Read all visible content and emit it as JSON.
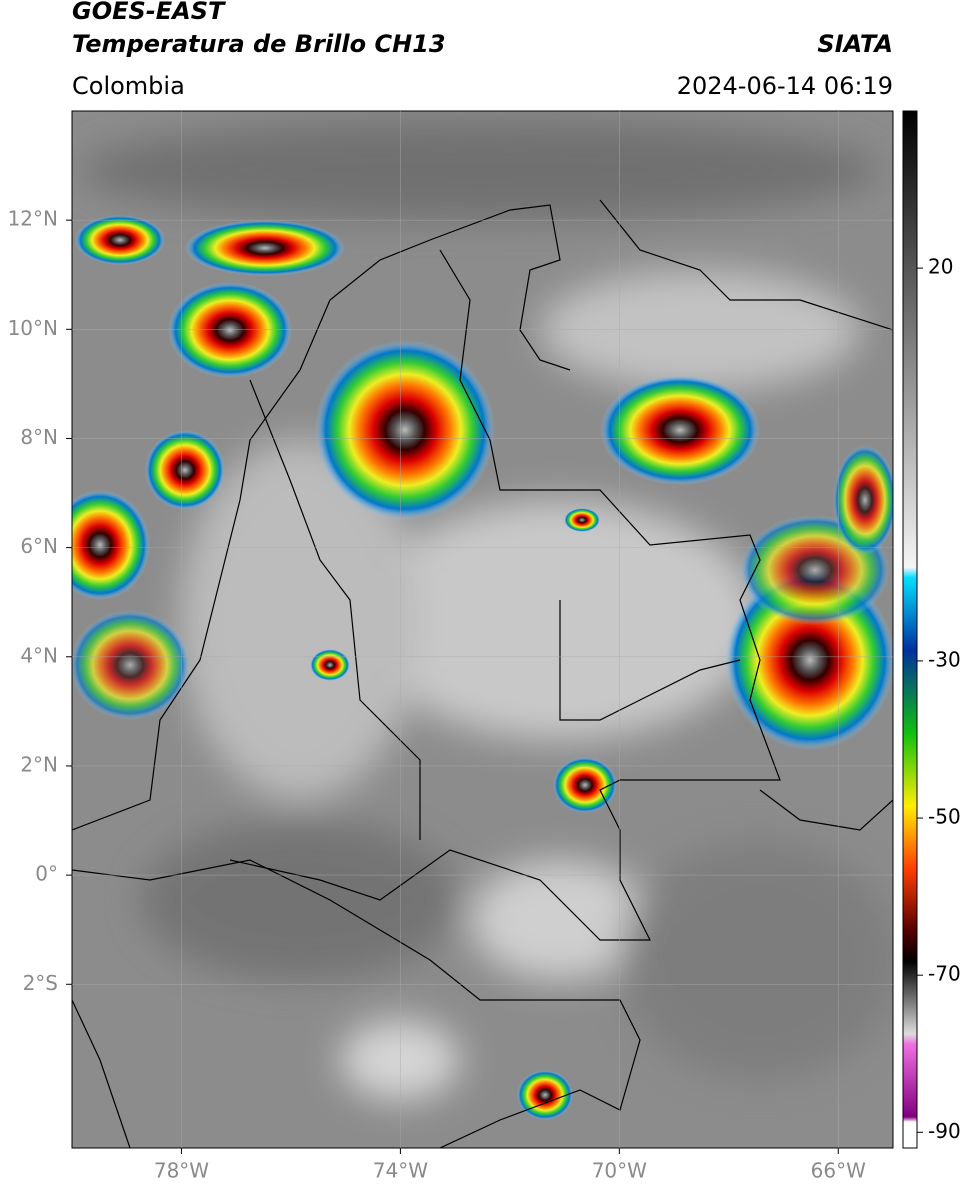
{
  "header": {
    "title": "GOES-EAST",
    "subtitle": "Temperatura de Brillo CH13",
    "source": "SIATA",
    "region": "Colombia",
    "datetime": "2024-06-14 06:19"
  },
  "map": {
    "lonlim": [
      -80,
      -65
    ],
    "latlim": [
      -5,
      14
    ],
    "xticks": [
      {
        "value": -78,
        "label": "78°W"
      },
      {
        "value": -74,
        "label": "74°W"
      },
      {
        "value": -70,
        "label": "70°W"
      },
      {
        "value": -66,
        "label": "66°W"
      }
    ],
    "yticks": [
      {
        "value": 12,
        "label": "12°N"
      },
      {
        "value": 10,
        "label": "10°N"
      },
      {
        "value": 8,
        "label": "8°N"
      },
      {
        "value": 6,
        "label": "6°N"
      },
      {
        "value": 4,
        "label": "4°N"
      },
      {
        "value": 2,
        "label": "2°N"
      },
      {
        "value": 0,
        "label": "0°"
      },
      {
        "value": -2,
        "label": "2°S"
      }
    ]
  },
  "colorbar": {
    "lim": [
      -92,
      40
    ],
    "ticks": [
      20,
      -30,
      -50,
      -70,
      -90
    ]
  }
}
